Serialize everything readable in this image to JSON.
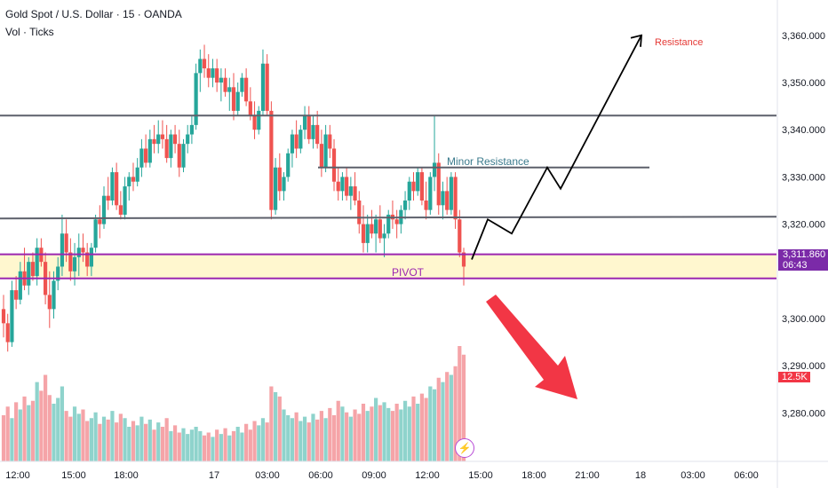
{
  "header": {
    "title": "Gold Spot / U.S. Dollar · 15 · OANDA",
    "vol_label": "Vol · Ticks"
  },
  "price_axis": {
    "ticks": [
      "3,360.000",
      "3,350.000",
      "3,340.000",
      "3,330.000",
      "3,320.000",
      "3,300.000",
      "3,290.000",
      "3,280.000"
    ],
    "last_price": "3,311.860",
    "countdown": "06:43",
    "volume_last": "12.5K"
  },
  "time_axis": {
    "ticks": [
      "12:00",
      "15:00",
      "18:00",
      "17",
      "03:00",
      "06:00",
      "09:00",
      "12:00",
      "15:00",
      "18:00",
      "21:00",
      "18",
      "03:00",
      "06:00"
    ]
  },
  "annotations": {
    "resistance": "Resistance",
    "minor_resistance": "Minor Resistance",
    "pivot": "PIVOT"
  },
  "colors": {
    "up": "#26a69a",
    "down": "#ef5350",
    "vol_up": "#8fd3cc",
    "vol_down": "#f5a4a8",
    "pivot": "#9c27b0",
    "pivot_fill": "#fff7cf",
    "level": "#5d606b",
    "resistance_text": "#e53935",
    "minor_text": "#3a7a8c",
    "arrow_red": "#f23645"
  },
  "chart_data": {
    "type": "candlestick",
    "instrument": "Gold Spot / U.S. Dollar",
    "interval": "15",
    "ylim": [
      3275,
      3368
    ],
    "levels": {
      "upper_resistance": 3343.0,
      "minor_resistance": 3332.0,
      "support": 3321.2,
      "pivot_top": 3313.6,
      "pivot_bottom": 3308.5
    },
    "last_price": 3311.86,
    "projection_path": [
      3312.5,
      3321.0,
      3318.0,
      3332.0,
      3327.5,
      3360.0
    ],
    "candles": [
      [
        3302,
        3305,
        3296,
        3299
      ],
      [
        3299,
        3301,
        3293,
        3295
      ],
      [
        3295,
        3308,
        3294,
        3306
      ],
      [
        3306,
        3309,
        3302,
        3304
      ],
      [
        3304,
        3312,
        3303,
        3310
      ],
      [
        3310,
        3315,
        3306,
        3307
      ],
      [
        3307,
        3313,
        3305,
        3312
      ],
      [
        3312,
        3314,
        3308,
        3309
      ],
      [
        3309,
        3317,
        3307,
        3315
      ],
      [
        3315,
        3317,
        3311,
        3312
      ],
      [
        3312,
        3314,
        3303,
        3305
      ],
      [
        3305,
        3310,
        3298,
        3302
      ],
      [
        3302,
        3310,
        3300,
        3308
      ],
      [
        3308,
        3313,
        3306,
        3311
      ],
      [
        3311,
        3322,
        3309,
        3318
      ],
      [
        3318,
        3321,
        3312,
        3314
      ],
      [
        3314,
        3317,
        3308,
        3310
      ],
      [
        3310,
        3316,
        3307,
        3313
      ],
      [
        3313,
        3318,
        3309,
        3315
      ],
      [
        3315,
        3318,
        3312,
        3314
      ],
      [
        3314,
        3316,
        3309,
        3311
      ],
      [
        3311,
        3316,
        3309,
        3315
      ],
      [
        3315,
        3322,
        3314,
        3321
      ],
      [
        3321,
        3324,
        3317,
        3320
      ],
      [
        3320,
        3328,
        3319,
        3326
      ],
      [
        3326,
        3330,
        3323,
        3325
      ],
      [
        3325,
        3332,
        3324,
        3331
      ],
      [
        3331,
        3333,
        3323,
        3324
      ],
      [
        3324,
        3327,
        3321,
        3322
      ],
      [
        3322,
        3330,
        3321,
        3328
      ],
      [
        3328,
        3331,
        3325,
        3330
      ],
      [
        3330,
        3333,
        3327,
        3329
      ],
      [
        3329,
        3334,
        3328,
        3332
      ],
      [
        3332,
        3338,
        3330,
        3336
      ],
      [
        3336,
        3339,
        3332,
        3333
      ],
      [
        3333,
        3340,
        3332,
        3338
      ],
      [
        3338,
        3341,
        3335,
        3337
      ],
      [
        3337,
        3342,
        3335,
        3339
      ],
      [
        3339,
        3342,
        3336,
        3338
      ],
      [
        3338,
        3341,
        3333,
        3334
      ],
      [
        3334,
        3340,
        3332,
        3339
      ],
      [
        3339,
        3341,
        3335,
        3337
      ],
      [
        3337,
        3340,
        3330,
        3332
      ],
      [
        3332,
        3338,
        3331,
        3337
      ],
      [
        3337,
        3341,
        3335,
        3339
      ],
      [
        3339,
        3343,
        3337,
        3341
      ],
      [
        3341,
        3354,
        3340,
        3352
      ],
      [
        3352,
        3357,
        3348,
        3355
      ],
      [
        3355,
        3358,
        3351,
        3353
      ],
      [
        3353,
        3356,
        3349,
        3351
      ],
      [
        3351,
        3355,
        3349,
        3353
      ],
      [
        3353,
        3355,
        3348,
        3350
      ],
      [
        3350,
        3353,
        3346,
        3351
      ],
      [
        3351,
        3353,
        3347,
        3348
      ],
      [
        3348,
        3351,
        3344,
        3349
      ],
      [
        3349,
        3352,
        3342,
        3344
      ],
      [
        3344,
        3350,
        3343,
        3348
      ],
      [
        3348,
        3352,
        3347,
        3351
      ],
      [
        3351,
        3353,
        3345,
        3346
      ],
      [
        3346,
        3349,
        3342,
        3343
      ],
      [
        3343,
        3346,
        3338,
        3340
      ],
      [
        3340,
        3345,
        3339,
        3344
      ],
      [
        3344,
        3357,
        3343,
        3354
      ],
      [
        3354,
        3356,
        3343,
        3344
      ],
      [
        3344,
        3346,
        3321,
        3323
      ],
      [
        3323,
        3334,
        3322,
        3332
      ],
      [
        3332,
        3335,
        3325,
        3327
      ],
      [
        3327,
        3331,
        3325,
        3330
      ],
      [
        3330,
        3336,
        3329,
        3335
      ],
      [
        3335,
        3340,
        3332,
        3339
      ],
      [
        3339,
        3342,
        3334,
        3336
      ],
      [
        3336,
        3341,
        3335,
        3340
      ],
      [
        3340,
        3345,
        3338,
        3343
      ],
      [
        3343,
        3345,
        3337,
        3338
      ],
      [
        3338,
        3343,
        3336,
        3341
      ],
      [
        3341,
        3344,
        3336,
        3337
      ],
      [
        3337,
        3340,
        3330,
        3332
      ],
      [
        3332,
        3341,
        3331,
        3339
      ],
      [
        3339,
        3341,
        3334,
        3336
      ],
      [
        3336,
        3338,
        3327,
        3329
      ],
      [
        3329,
        3332,
        3325,
        3327
      ],
      [
        3327,
        3331,
        3325,
        3330
      ],
      [
        3330,
        3332,
        3325,
        3326
      ],
      [
        3326,
        3330,
        3323,
        3328
      ],
      [
        3328,
        3331,
        3324,
        3325
      ],
      [
        3325,
        3327,
        3318,
        3320
      ],
      [
        3320,
        3324,
        3314,
        3316
      ],
      [
        3316,
        3322,
        3314,
        3320
      ],
      [
        3320,
        3323,
        3317,
        3318
      ],
      [
        3318,
        3322,
        3314,
        3321
      ],
      [
        3321,
        3324,
        3316,
        3317
      ],
      [
        3317,
        3320,
        3313,
        3318
      ],
      [
        3318,
        3323,
        3317,
        3322
      ],
      [
        3322,
        3325,
        3319,
        3321
      ],
      [
        3321,
        3323,
        3317,
        3320
      ],
      [
        3320,
        3324,
        3318,
        3323
      ],
      [
        3323,
        3327,
        3321,
        3325
      ],
      [
        3325,
        3330,
        3323,
        3329
      ],
      [
        3329,
        3331,
        3325,
        3327
      ],
      [
        3327,
        3332,
        3326,
        3331
      ],
      [
        3331,
        3332,
        3324,
        3325
      ],
      [
        3325,
        3329,
        3321,
        3323
      ],
      [
        3323,
        3331,
        3322,
        3330
      ],
      [
        3330,
        3343,
        3327,
        3333
      ],
      [
        3333,
        3335,
        3322,
        3324
      ],
      [
        3324,
        3329,
        3321,
        3327
      ],
      [
        3327,
        3330,
        3322,
        3323
      ],
      [
        3323,
        3331,
        3322,
        3330
      ],
      [
        3330,
        3331,
        3319,
        3321
      ],
      [
        3321,
        3323,
        3313,
        3314
      ],
      [
        3314,
        3315,
        3307,
        3311
      ]
    ],
    "volumes": [
      32,
      38,
      30,
      41,
      36,
      45,
      39,
      42,
      55,
      49,
      60,
      46,
      40,
      44,
      52,
      35,
      31,
      38,
      33,
      36,
      28,
      30,
      34,
      26,
      31,
      29,
      35,
      27,
      33,
      30,
      24,
      28,
      25,
      31,
      26,
      29,
      22,
      27,
      24,
      30,
      21,
      25,
      20,
      23,
      19,
      22,
      24,
      21,
      18,
      20,
      17,
      22,
      19,
      23,
      18,
      21,
      24,
      20,
      26,
      22,
      28,
      25,
      30,
      27,
      52,
      48,
      45,
      36,
      32,
      30,
      34,
      28,
      31,
      27,
      33,
      29,
      35,
      30,
      37,
      32,
      42,
      38,
      34,
      31,
      36,
      33,
      40,
      35,
      38,
      44,
      39,
      41,
      37,
      35,
      40,
      36,
      42,
      38,
      45,
      40,
      47,
      44,
      52,
      50,
      58,
      55,
      62,
      60,
      66,
      80,
      74
    ]
  }
}
